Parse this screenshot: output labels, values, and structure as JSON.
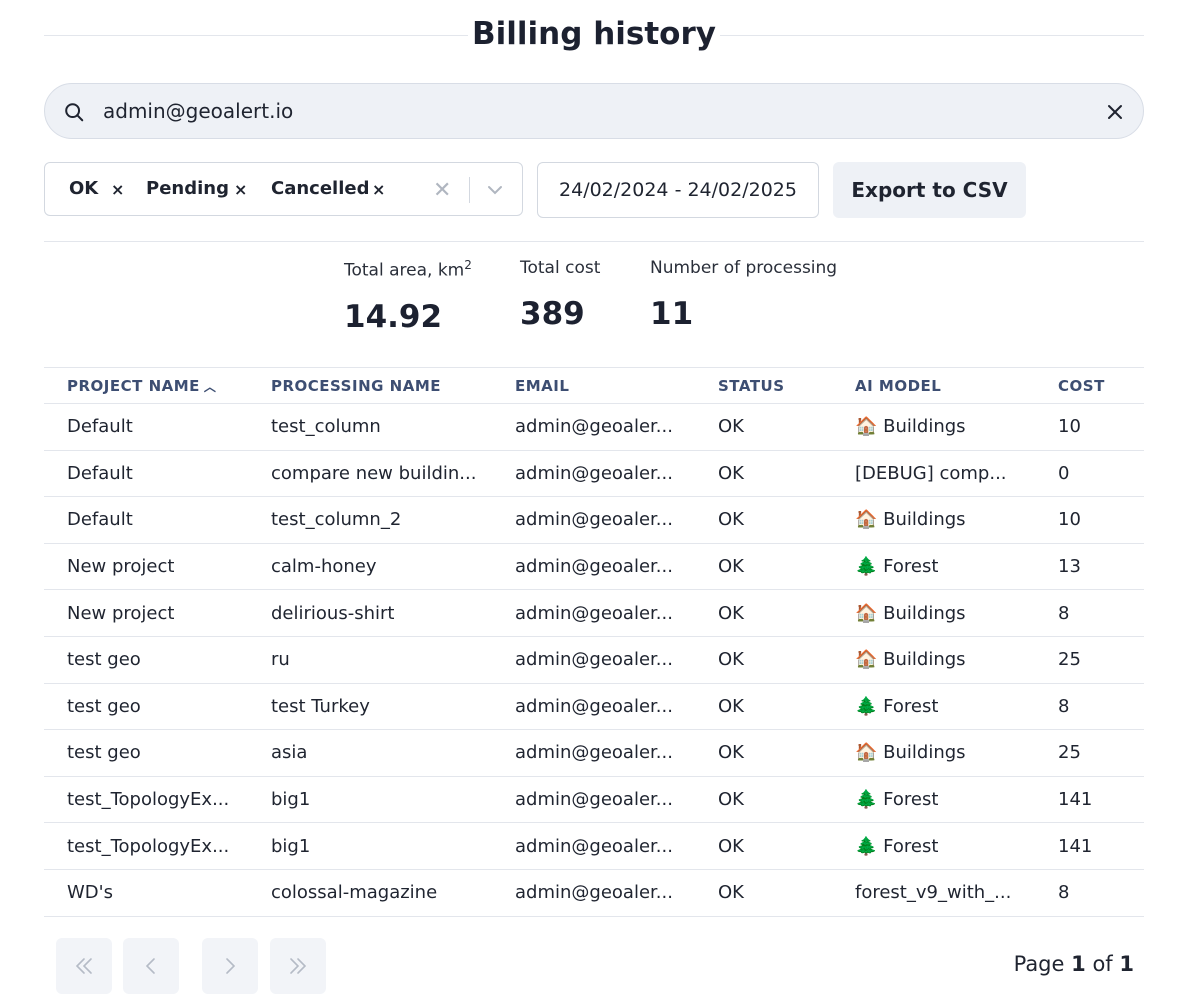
{
  "page": {
    "title": "Billing history"
  },
  "search": {
    "value": "admin@geoalert.io"
  },
  "filters": {
    "statuses": [
      "OK",
      "Pending",
      "Cancelled"
    ],
    "date_range": "24/02/2024 - 24/02/2025",
    "export_label": "Export to CSV"
  },
  "summary": {
    "area_label": "Total area, km",
    "area_sup": "2",
    "area_value": "14.92",
    "cost_label": "Total cost",
    "cost_value": "389",
    "count_label": "Number of processing",
    "count_value": "11"
  },
  "table": {
    "columns": [
      "PROJECT NAME",
      "PROCESSING NAME",
      "EMAIL",
      "STATUS",
      "AI MODEL",
      "COST"
    ],
    "rows": [
      [
        "Default",
        "test_column",
        "admin@geoaler...",
        "OK",
        "🏠 Buildings",
        "10"
      ],
      [
        "Default",
        "compare new buildin...",
        "admin@geoaler...",
        "OK",
        "[DEBUG] comp...",
        "0"
      ],
      [
        "Default",
        "test_column_2",
        "admin@geoaler...",
        "OK",
        "🏠 Buildings",
        "10"
      ],
      [
        "New project",
        "calm-honey",
        "admin@geoaler...",
        "OK",
        "🌲 Forest",
        "13"
      ],
      [
        "New project",
        "delirious-shirt",
        "admin@geoaler...",
        "OK",
        "🏠 Buildings",
        "8"
      ],
      [
        "test geo",
        "ru",
        "admin@geoaler...",
        "OK",
        "🏠 Buildings",
        "25"
      ],
      [
        "test geo",
        "test Turkey",
        "admin@geoaler...",
        "OK",
        "🌲 Forest",
        "8"
      ],
      [
        "test geo",
        "asia",
        "admin@geoaler...",
        "OK",
        "🏠 Buildings",
        "25"
      ],
      [
        "test_TopologyEx...",
        "big1",
        "admin@geoaler...",
        "OK",
        "🌲 Forest",
        "141"
      ],
      [
        "test_TopologyEx...",
        "big1",
        "admin@geoaler...",
        "OK",
        "🌲 Forest",
        "141"
      ],
      [
        "WD's",
        "colossal-magazine",
        "admin@geoaler...",
        "OK",
        "forest_v9_with_...",
        "8"
      ]
    ]
  },
  "pagination": {
    "prefix": "Page",
    "current": "1",
    "sep": "of",
    "total": "1"
  }
}
